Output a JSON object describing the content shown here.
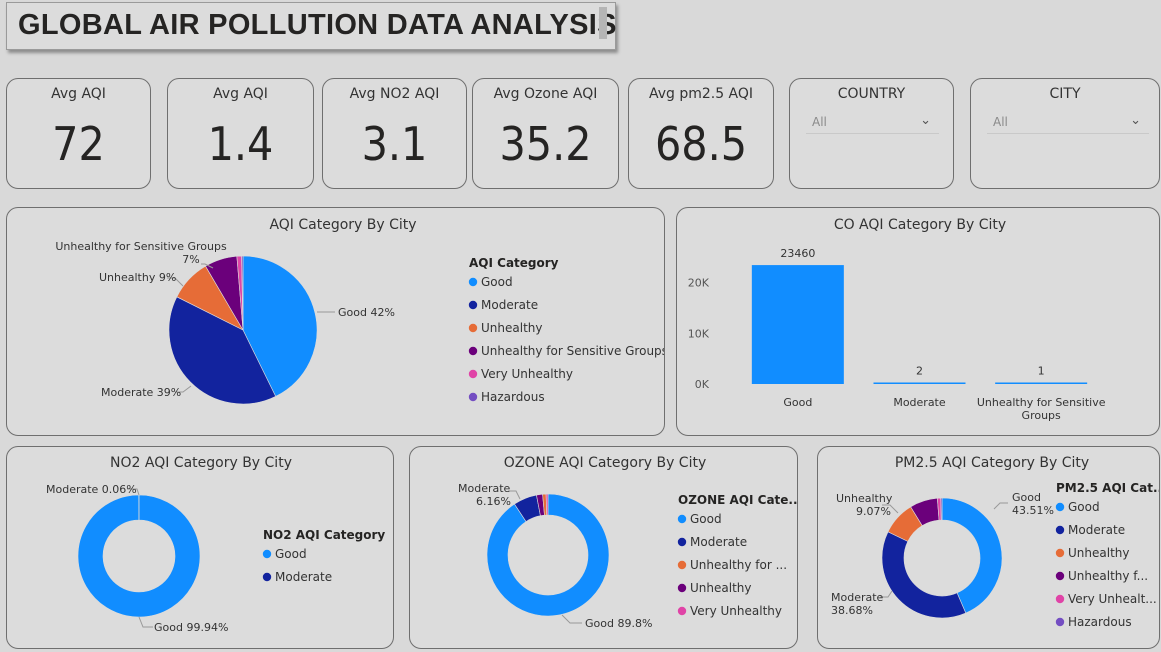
{
  "header": {
    "title": "GLOBAL AIR POLLUTION DATA ANALYSIS"
  },
  "kpis": [
    {
      "label": "Avg AQI",
      "value": "72"
    },
    {
      "label": "Avg AQI",
      "value": "1.4"
    },
    {
      "label": "Avg NO2 AQI",
      "value": "3.1"
    },
    {
      "label": "Avg Ozone AQI",
      "value": "35.2"
    },
    {
      "label": "Avg pm2.5 AQI",
      "value": "68.5"
    }
  ],
  "slicers": {
    "country": {
      "label": "COUNTRY",
      "value": "All"
    },
    "city": {
      "label": "CITY",
      "value": "All"
    }
  },
  "colors": {
    "good": "#118dff",
    "moderate": "#12239e",
    "unhealthy": "#e66c37",
    "unhealthy_sensitive": "#6b007b",
    "very_unhealthy": "#e044a7",
    "hazardous": "#744ec2"
  },
  "chart_data": [
    {
      "id": "aqi",
      "type": "pie",
      "title": "AQI Category By City",
      "legend_title": "AQI Category",
      "legend": [
        "Good",
        "Moderate",
        "Unhealthy",
        "Unhealthy for Sensitive Groups",
        "Very Unhealthy",
        "Hazardous"
      ],
      "slices": [
        {
          "name": "Good",
          "value": 42,
          "label": "Good 42%"
        },
        {
          "name": "Moderate",
          "value": 39,
          "label": "Moderate 39%"
        },
        {
          "name": "Unhealthy",
          "value": 9,
          "label": "Unhealthy 9%"
        },
        {
          "name": "Unhealthy for Sensitive Groups",
          "value": 7,
          "label_line1": "Unhealthy for Sensitive Groups",
          "label_line2": "7%"
        },
        {
          "name": "Very Unhealthy",
          "value": 1
        },
        {
          "name": "Hazardous",
          "value": 0.3
        }
      ]
    },
    {
      "id": "co",
      "type": "bar",
      "title": "CO AQI Category By City",
      "categories": [
        "Good",
        "Moderate",
        "Unhealthy for Sensitive Groups"
      ],
      "category_lines": [
        [
          "Good"
        ],
        [
          "Moderate"
        ],
        [
          "Unhealthy for Sensitive",
          "Groups"
        ]
      ],
      "values": [
        23460,
        2,
        1
      ],
      "data_labels": [
        "23460",
        "2",
        "1"
      ],
      "yticks": [
        "0K",
        "10K",
        "20K"
      ],
      "ylim": [
        0,
        29000
      ]
    },
    {
      "id": "no2",
      "type": "pie",
      "title": "NO2 AQI Category By City",
      "legend_title": "NO2 AQI Category",
      "legend": [
        "Good",
        "Moderate"
      ],
      "slices": [
        {
          "name": "Good",
          "value": 99.94,
          "label": "Good 99.94%"
        },
        {
          "name": "Moderate",
          "value": 0.06,
          "label": "Moderate 0.06%"
        }
      ]
    },
    {
      "id": "ozone",
      "type": "pie",
      "title": "OZONE AQI Category By City",
      "legend_title": "OZONE AQI Cate...",
      "legend": [
        "Good",
        "Moderate",
        "Unhealthy for ...",
        "Unhealthy",
        "Very Unhealthy"
      ],
      "slices": [
        {
          "name": "Good",
          "value": 89.8,
          "label": "Good 89.8%"
        },
        {
          "name": "Moderate",
          "value": 6.16,
          "label_line1": "Moderate",
          "label_line2": "6.16%"
        },
        {
          "name": "Unhealthy for Sensitive Groups",
          "value": 1.6
        },
        {
          "name": "Unhealthy",
          "value": 0.9
        },
        {
          "name": "Very Unhealthy",
          "value": 0.5
        }
      ]
    },
    {
      "id": "pm25",
      "type": "pie",
      "title": "PM2.5 AQI Category By City",
      "legend_title": "PM2.5 AQI Cat...",
      "legend": [
        "Good",
        "Moderate",
        "Unhealthy",
        "Unhealthy f...",
        "Very Unhealt...",
        "Hazardous"
      ],
      "slices": [
        {
          "name": "Good",
          "value": 43.51,
          "label_line1": "Good",
          "label_line2": "43.51%"
        },
        {
          "name": "Moderate",
          "value": 38.68,
          "label_line1": "Moderate",
          "label_line2": "38.68%"
        },
        {
          "name": "Unhealthy",
          "value": 9.07,
          "label_line1": "Unhealthy",
          "label_line2": "9.07%"
        },
        {
          "name": "Unhealthy for Sensitive Groups",
          "value": 7.5
        },
        {
          "name": "Very Unhealthy",
          "value": 0.9
        },
        {
          "name": "Hazardous",
          "value": 0.34
        }
      ]
    }
  ]
}
